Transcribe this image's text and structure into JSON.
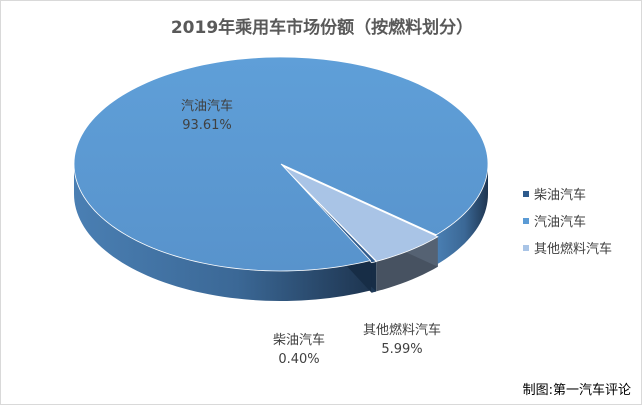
{
  "chart_data": {
    "type": "pie",
    "style": "3d",
    "title": "2019年乘用车市场份额（按燃料划分）",
    "slices": [
      {
        "name": "柴油汽车",
        "value": 0.4,
        "label": "0.40%",
        "color": "#2e5a8c"
      },
      {
        "name": "汽油汽车",
        "value": 93.61,
        "label": "93.61%",
        "color": "#5b9bd5"
      },
      {
        "name": "其他燃料汽车",
        "value": 5.99,
        "label": "5.99%",
        "color": "#a9c4e6"
      }
    ],
    "legend_position": "right"
  },
  "credit": "制图:第一汽车评论"
}
